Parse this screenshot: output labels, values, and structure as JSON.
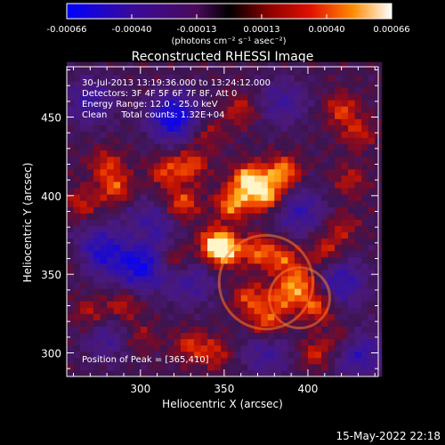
{
  "chart_data": {
    "type": "heatmap",
    "title": "Reconstructed RHESSI Image",
    "xlabel": "Heliocentric X (arcsec)",
    "ylabel": "Heliocentric Y (arcsec)",
    "xlim": [
      256,
      442
    ],
    "ylim": [
      285,
      482
    ],
    "x_ticks": [
      300,
      350,
      400
    ],
    "y_ticks": [
      300,
      350,
      400,
      450
    ],
    "colorbar": {
      "range": [
        -0.00066,
        0.00066
      ],
      "tick_labels": [
        "-0.00066",
        "-0.00040",
        "-0.00013",
        "0.00013",
        "0.00040",
        "0.00066"
      ],
      "unit_label": "(photons cm⁻² s⁻¹ asec⁻²)"
    },
    "annotations": {
      "time_range": "30-Jul-2013 13:19:36.000 to 13:24:12.000",
      "detectors": "Detectors: 3F 4F 5F 6F 7F 8F, Att 0",
      "energy_range": "Energy Range: 12.0 - 25.0 keV",
      "clean_counts": "Clean     Total counts: 1.32E+04",
      "peak_position": "Position of Peak = [365,410]"
    },
    "peak": [
      365,
      410
    ],
    "hotspots": [
      {
        "x": 365,
        "y": 410,
        "value": 1.0
      },
      {
        "x": 375,
        "y": 400,
        "value": 0.85
      },
      {
        "x": 355,
        "y": 395,
        "value": 0.75
      },
      {
        "x": 385,
        "y": 415,
        "value": 0.8
      },
      {
        "x": 350,
        "y": 365,
        "value": 0.85
      },
      {
        "x": 345,
        "y": 370,
        "value": 0.75
      },
      {
        "x": 370,
        "y": 365,
        "value": 0.6
      },
      {
        "x": 385,
        "y": 360,
        "value": 0.55
      },
      {
        "x": 395,
        "y": 345,
        "value": 0.7
      },
      {
        "x": 405,
        "y": 330,
        "value": 0.65
      },
      {
        "x": 385,
        "y": 335,
        "value": 0.55
      },
      {
        "x": 375,
        "y": 320,
        "value": 0.6
      },
      {
        "x": 365,
        "y": 335,
        "value": 0.55
      },
      {
        "x": 325,
        "y": 395,
        "value": 0.6
      },
      {
        "x": 315,
        "y": 415,
        "value": 0.5
      },
      {
        "x": 330,
        "y": 420,
        "value": 0.55
      },
      {
        "x": 285,
        "y": 405,
        "value": 0.55
      },
      {
        "x": 280,
        "y": 420,
        "value": 0.45
      },
      {
        "x": 265,
        "y": 395,
        "value": 0.4
      },
      {
        "x": 290,
        "y": 330,
        "value": 0.45
      },
      {
        "x": 270,
        "y": 325,
        "value": 0.4
      },
      {
        "x": 320,
        "y": 360,
        "value": 0.45
      },
      {
        "x": 300,
        "y": 375,
        "value": 0.35
      },
      {
        "x": 340,
        "y": 440,
        "value": 0.35
      },
      {
        "x": 360,
        "y": 455,
        "value": 0.4
      },
      {
        "x": 420,
        "y": 455,
        "value": 0.5
      },
      {
        "x": 430,
        "y": 440,
        "value": 0.4
      },
      {
        "x": 425,
        "y": 410,
        "value": 0.35
      },
      {
        "x": 420,
        "y": 380,
        "value": 0.35
      },
      {
        "x": 410,
        "y": 365,
        "value": 0.45
      },
      {
        "x": 330,
        "y": 305,
        "value": 0.45
      },
      {
        "x": 345,
        "y": 300,
        "value": 0.4
      },
      {
        "x": 405,
        "y": 300,
        "value": 0.45
      },
      {
        "x": 420,
        "y": 310,
        "value": 0.35
      },
      {
        "x": 300,
        "y": 310,
        "value": 0.3
      },
      {
        "x": 260,
        "y": 360,
        "value": 0.25
      }
    ],
    "coldspots": [
      {
        "x": 320,
        "y": 450,
        "value": -0.9
      },
      {
        "x": 300,
        "y": 355,
        "value": -0.8
      },
      {
        "x": 275,
        "y": 365,
        "value": -0.7
      },
      {
        "x": 305,
        "y": 380,
        "value": -0.6
      },
      {
        "x": 395,
        "y": 390,
        "value": -0.55
      },
      {
        "x": 420,
        "y": 345,
        "value": -0.6
      },
      {
        "x": 430,
        "y": 300,
        "value": -0.6
      },
      {
        "x": 375,
        "y": 300,
        "value": -0.45
      },
      {
        "x": 270,
        "y": 460,
        "value": -0.5
      },
      {
        "x": 385,
        "y": 460,
        "value": -0.45
      },
      {
        "x": 330,
        "y": 345,
        "value": -0.45
      },
      {
        "x": 280,
        "y": 310,
        "value": -0.4
      }
    ]
  },
  "footer": {
    "date": "15-May-2022 22:18"
  }
}
